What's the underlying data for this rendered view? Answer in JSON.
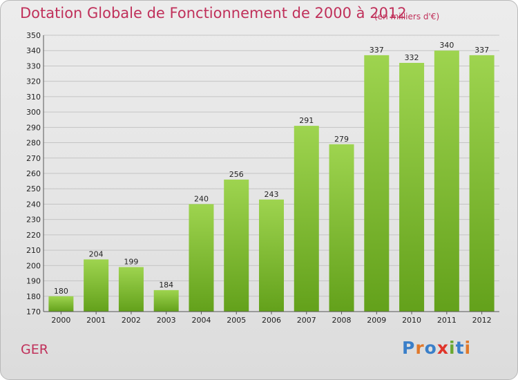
{
  "header": {
    "title": "Dotation Globale de Fonctionnement de 2000 à 2012",
    "unit": "(en milliers d'€)"
  },
  "footer": {
    "commune": "GER",
    "logo_text": "Proxiti"
  },
  "colors": {
    "title": "#c0305a",
    "bar_top": "#9ed44f",
    "bar_bottom": "#63a11b",
    "logo_letters": [
      "#3a7fc9",
      "#e0782a",
      "#3a7fc9",
      "#e0342a",
      "#6aa830",
      "#3a7fc9",
      "#e0782a"
    ]
  },
  "chart_data": {
    "type": "bar",
    "title": "Dotation Globale de Fonctionnement de 2000 à 2012",
    "subtitle": "(en milliers d'€)",
    "xlabel": "",
    "ylabel": "",
    "categories": [
      "2000",
      "2001",
      "2002",
      "2003",
      "2004",
      "2005",
      "2006",
      "2007",
      "2008",
      "2009",
      "2010",
      "2011",
      "2012"
    ],
    "values": [
      180,
      204,
      199,
      184,
      240,
      256,
      243,
      291,
      279,
      337,
      332,
      340,
      337
    ],
    "ylim": [
      170,
      350
    ],
    "yticks": [
      170,
      180,
      190,
      200,
      210,
      220,
      230,
      240,
      250,
      260,
      270,
      280,
      290,
      300,
      310,
      320,
      330,
      340,
      350
    ],
    "grid": true,
    "data_labels": true
  }
}
